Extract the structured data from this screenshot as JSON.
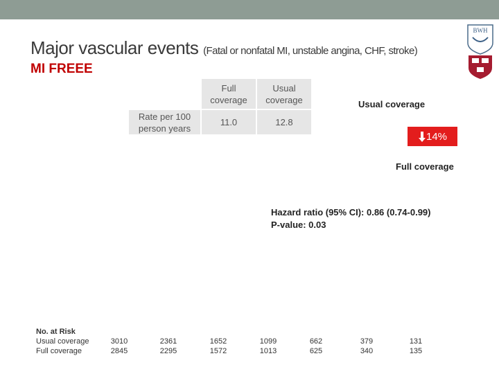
{
  "header": {
    "title": "Major vascular events",
    "subtitle": "(Fatal or nonfatal MI, unstable angina, CHF, stroke)",
    "tag": "MI FREEE"
  },
  "logo": {
    "text": "BWH"
  },
  "rate_table": {
    "columns": [
      "Full coverage",
      "Usual coverage"
    ],
    "row_label": "Rate per 100 person years",
    "values": [
      "11.0",
      "12.8"
    ]
  },
  "annotations": {
    "upper_curve": "Usual coverage",
    "reduction": "14%",
    "lower_curve": "Full coverage",
    "hazard_ratio": "Hazard ratio (95% CI): 0.86 (0.74-0.99)",
    "p_value": "P-value: 0.03"
  },
  "at_risk": {
    "title": "No. at Risk",
    "rows": [
      {
        "label": "Usual coverage",
        "values": [
          "3010",
          "2361",
          "1652",
          "1099",
          "662",
          "379",
          "131"
        ]
      },
      {
        "label": "Full coverage",
        "values": [
          "2845",
          "2295",
          "1572",
          "1013",
          "625",
          "340",
          "135"
        ]
      }
    ]
  }
}
